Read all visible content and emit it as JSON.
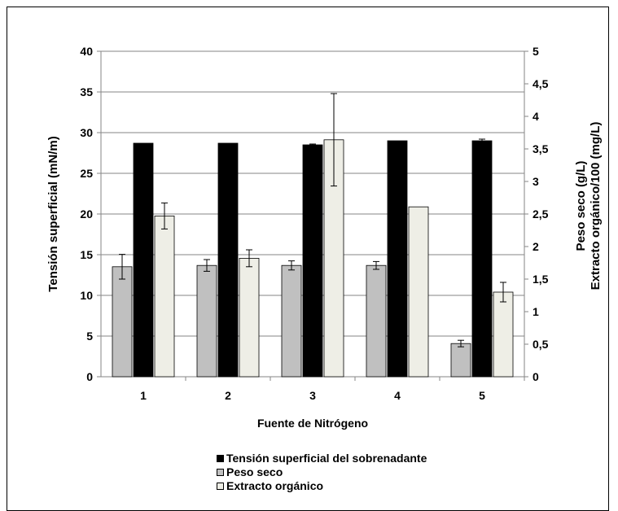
{
  "chart_data": {
    "type": "bar",
    "categories": [
      "1",
      "2",
      "3",
      "4",
      "5"
    ],
    "xlabel": "Fuente de Nitrógeno",
    "ylabel": "Tensión superficial (mN/m)",
    "y2label_line1": "Peso seco (g/L)",
    "y2label_line2": "Extracto orgánico/100 (mg/L)",
    "ylim": [
      0,
      40
    ],
    "y2lim": [
      0,
      5
    ],
    "yticks": [
      "0",
      "5",
      "10",
      "15",
      "20",
      "25",
      "30",
      "35",
      "40"
    ],
    "y2ticks": [
      "0",
      "0,5",
      "1",
      "1,5",
      "2",
      "2,5",
      "3",
      "3,5",
      "4",
      "4,5",
      "5"
    ],
    "grid": true,
    "legend_position": "bottom",
    "series": [
      {
        "name": "Peso seco",
        "axis": "right",
        "color": "#c0c0c0",
        "values": [
          1.69,
          1.71,
          1.71,
          1.71,
          0.51
        ],
        "errors": [
          0.19,
          0.09,
          0.07,
          0.06,
          0.05
        ]
      },
      {
        "name": "Tensión superficial del sobrenadante",
        "axis": "left",
        "color": "#000000",
        "values": [
          28.7,
          28.7,
          28.5,
          29.0,
          29.0
        ],
        "errors": [
          0.0,
          0.0,
          0.1,
          0.0,
          0.2
        ]
      },
      {
        "name": "Extracto orgánico",
        "axis": "right",
        "color": "#eeeee6",
        "values": [
          2.47,
          1.82,
          3.64,
          2.61,
          1.3
        ],
        "errors": [
          0.2,
          0.13,
          0.71,
          0.0,
          0.15
        ]
      }
    ],
    "legend_order": [
      1,
      0,
      2
    ]
  }
}
